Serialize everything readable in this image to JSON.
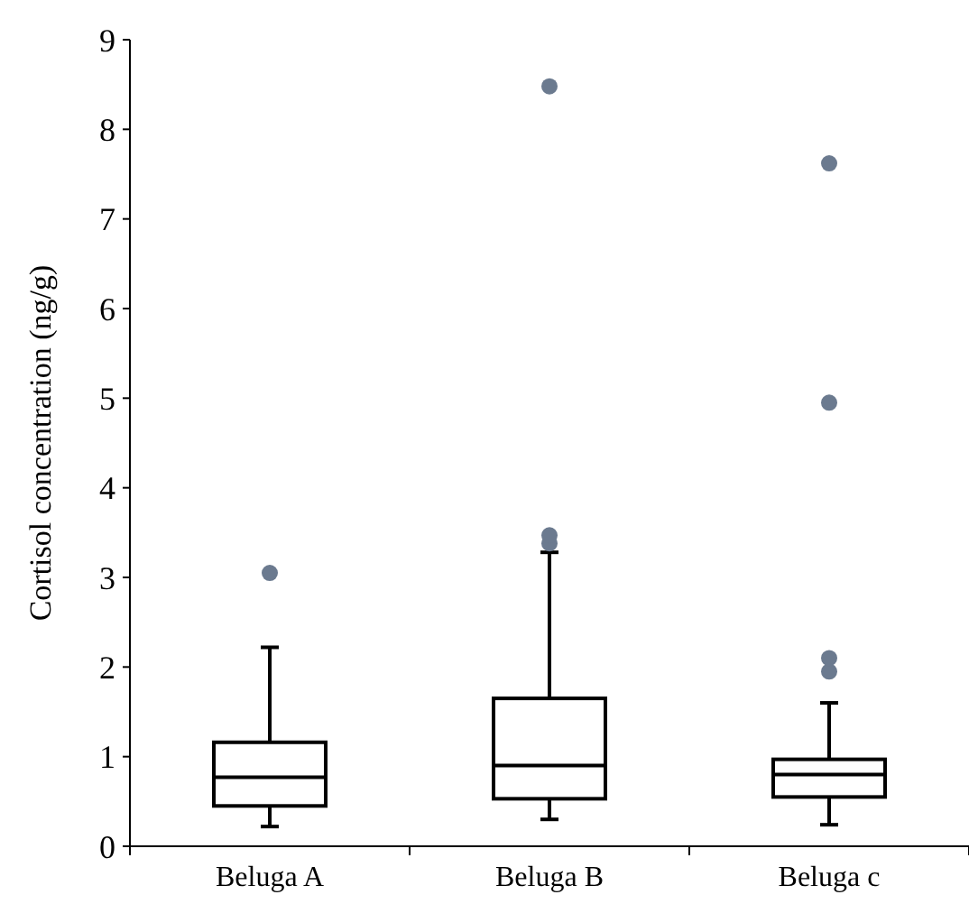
{
  "chart_data": {
    "type": "box",
    "ylabel": "Cortisol concentration (ng/g)",
    "categories": [
      "Beluga A",
      "Beluga B",
      "Beluga c"
    ],
    "boxes": [
      {
        "low": 0.22,
        "q1": 0.45,
        "median": 0.77,
        "q3": 1.16,
        "high": 2.22,
        "outliers": [
          3.05
        ]
      },
      {
        "low": 0.3,
        "q1": 0.53,
        "median": 0.9,
        "q3": 1.65,
        "high": 3.28,
        "outliers": [
          3.38,
          3.47,
          8.48
        ]
      },
      {
        "low": 0.24,
        "q1": 0.55,
        "median": 0.8,
        "q3": 0.97,
        "high": 1.6,
        "outliers": [
          1.95,
          2.1,
          4.95,
          7.62
        ]
      }
    ],
    "color": "#000000",
    "ylim": [
      0,
      9
    ],
    "yticks": [
      0,
      1,
      2,
      3,
      4,
      5,
      6,
      7,
      8,
      9
    ],
    "grid": false
  }
}
